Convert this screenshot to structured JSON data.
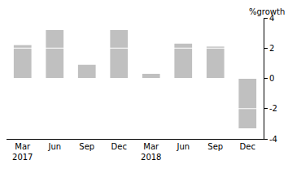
{
  "chart_data": {
    "type": "bar",
    "y_label": "%growth",
    "categories": [
      "Mar\n2017",
      "Jun",
      "Sep",
      "Dec",
      "Mar\n2018",
      "Jun",
      "Sep",
      "Dec"
    ],
    "values": [
      2.2,
      3.2,
      0.9,
      3.2,
      0.3,
      2.3,
      2.1,
      -3.3
    ],
    "color": "#c0c0c0",
    "ylim": [
      -4,
      4
    ],
    "yticks": [
      -4,
      -2,
      0,
      2,
      4
    ],
    "grid": true
  }
}
